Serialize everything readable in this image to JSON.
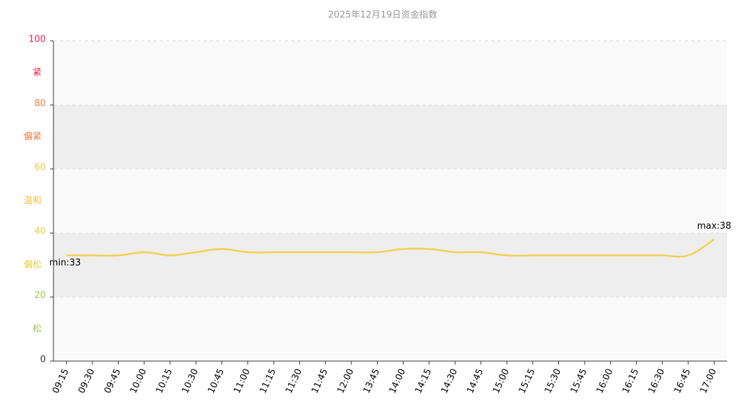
{
  "chart_data": {
    "type": "line",
    "title": "2025年12月19日资金指数",
    "categories": [
      "09:15",
      "09:30",
      "09:45",
      "10:00",
      "10:15",
      "10:30",
      "10:45",
      "11:00",
      "11:15",
      "11:30",
      "11:45",
      "12:00",
      "13:45",
      "14:00",
      "14:15",
      "14:30",
      "14:45",
      "15:00",
      "15:15",
      "15:30",
      "15:45",
      "16:00",
      "16:15",
      "16:30",
      "16:45",
      "17:00"
    ],
    "series": [
      {
        "name": "资金指数",
        "color": "#f0d24e",
        "values": [
          33,
          33,
          33,
          34,
          33,
          34,
          35,
          34,
          34,
          34,
          34,
          34,
          34,
          35,
          35,
          34,
          34,
          33,
          33,
          33,
          33,
          33,
          33,
          33,
          33,
          38
        ]
      }
    ],
    "annotations": [
      "min:33",
      "max:38"
    ],
    "ylim": [
      0,
      100
    ],
    "yticks": [
      0,
      20,
      40,
      60,
      80,
      100
    ],
    "ytick_colors": [
      "#333333",
      "#95c94f",
      "#e6cf3c",
      "#f3c245",
      "#f07b3f",
      "#e8284a"
    ],
    "bands": [
      {
        "label": "松",
        "color": "#95c94f",
        "fill": "#fafafa"
      },
      {
        "label": "偏松",
        "color": "#e6cf3c",
        "fill": "#eeeeee"
      },
      {
        "label": "温和",
        "color": "#f3c245",
        "fill": "#fafafa"
      },
      {
        "label": "偏紧",
        "color": "#f07b3f",
        "fill": "#eeeeee"
      },
      {
        "label": "紧",
        "color": "#e8284a",
        "fill": "#fafafa"
      }
    ],
    "grid": true
  }
}
